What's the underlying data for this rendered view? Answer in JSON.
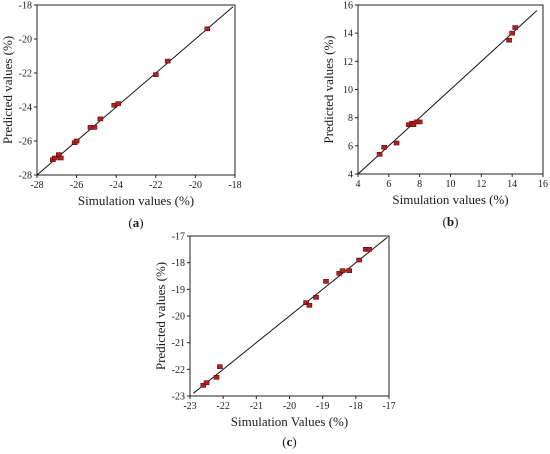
{
  "chart_data": [
    {
      "type": "scatter",
      "panel_label": "(a)",
      "xlabel": "Simulation values (%)",
      "ylabel": "Predicted values (%)",
      "xlim": [
        -28,
        -18
      ],
      "ylim": [
        -28,
        -18
      ],
      "xticks": [
        -28,
        -26,
        -24,
        -22,
        -20,
        -18
      ],
      "yticks": [
        -28,
        -26,
        -24,
        -22,
        -20,
        -18
      ],
      "fit_line": [
        [
          -28,
          -28
        ],
        [
          -18.1,
          -18.1
        ]
      ],
      "marker_color": "#b22222",
      "points": [
        {
          "x": -27.2,
          "y": -27.1
        },
        {
          "x": -27.1,
          "y": -27.0
        },
        {
          "x": -26.9,
          "y": -26.8
        },
        {
          "x": -26.8,
          "y": -27.0
        },
        {
          "x": -26.1,
          "y": -26.1
        },
        {
          "x": -26.0,
          "y": -26.0
        },
        {
          "x": -25.3,
          "y": -25.2
        },
        {
          "x": -25.1,
          "y": -25.2
        },
        {
          "x": -24.8,
          "y": -24.7
        },
        {
          "x": -24.1,
          "y": -23.9
        },
        {
          "x": -23.9,
          "y": -23.8
        },
        {
          "x": -22.0,
          "y": -22.1
        },
        {
          "x": -21.4,
          "y": -21.3
        },
        {
          "x": -19.4,
          "y": -19.4
        }
      ]
    },
    {
      "type": "scatter",
      "panel_label": "(b)",
      "xlabel": "Simulation values (%)",
      "ylabel": "Predicted values (%)",
      "xlim": [
        4,
        16
      ],
      "ylim": [
        4,
        16
      ],
      "xticks": [
        4,
        6,
        8,
        10,
        12,
        14,
        16
      ],
      "yticks": [
        4,
        6,
        8,
        10,
        12,
        14,
        16
      ],
      "fit_line": [
        [
          4,
          4
        ],
        [
          15.6,
          15.6
        ]
      ],
      "marker_color": "#b22222",
      "points": [
        {
          "x": 5.4,
          "y": 5.4
        },
        {
          "x": 5.7,
          "y": 5.9
        },
        {
          "x": 6.5,
          "y": 6.2
        },
        {
          "x": 7.3,
          "y": 7.5
        },
        {
          "x": 7.5,
          "y": 7.6
        },
        {
          "x": 7.6,
          "y": 7.5
        },
        {
          "x": 7.8,
          "y": 7.7
        },
        {
          "x": 8.0,
          "y": 7.7
        },
        {
          "x": 13.8,
          "y": 13.5
        },
        {
          "x": 14.0,
          "y": 14.0
        },
        {
          "x": 14.2,
          "y": 14.4
        }
      ]
    },
    {
      "type": "scatter",
      "panel_label": "(c)",
      "xlabel": "Simulation Values (%)",
      "ylabel": "Predicted values (%)",
      "xlim": [
        -23,
        -17
      ],
      "ylim": [
        -23,
        -17
      ],
      "xticks": [
        -23,
        -22,
        -21,
        -20,
        -19,
        -18,
        -17
      ],
      "yticks": [
        -23,
        -22,
        -21,
        -20,
        -19,
        -18,
        -17
      ],
      "fit_line": [
        [
          -22.9,
          -22.9
        ],
        [
          -17.05,
          -17.05
        ]
      ],
      "marker_color": "#b22222",
      "points": [
        {
          "x": -22.6,
          "y": -22.6
        },
        {
          "x": -22.5,
          "y": -22.5
        },
        {
          "x": -22.2,
          "y": -22.3
        },
        {
          "x": -22.1,
          "y": -21.9
        },
        {
          "x": -19.5,
          "y": -19.5
        },
        {
          "x": -19.4,
          "y": -19.6
        },
        {
          "x": -19.2,
          "y": -19.3
        },
        {
          "x": -18.9,
          "y": -18.7
        },
        {
          "x": -18.5,
          "y": -18.4
        },
        {
          "x": -18.4,
          "y": -18.3
        },
        {
          "x": -18.2,
          "y": -18.3
        },
        {
          "x": -17.9,
          "y": -17.9
        },
        {
          "x": -17.7,
          "y": -17.5
        },
        {
          "x": -17.6,
          "y": -17.5
        }
      ]
    }
  ]
}
